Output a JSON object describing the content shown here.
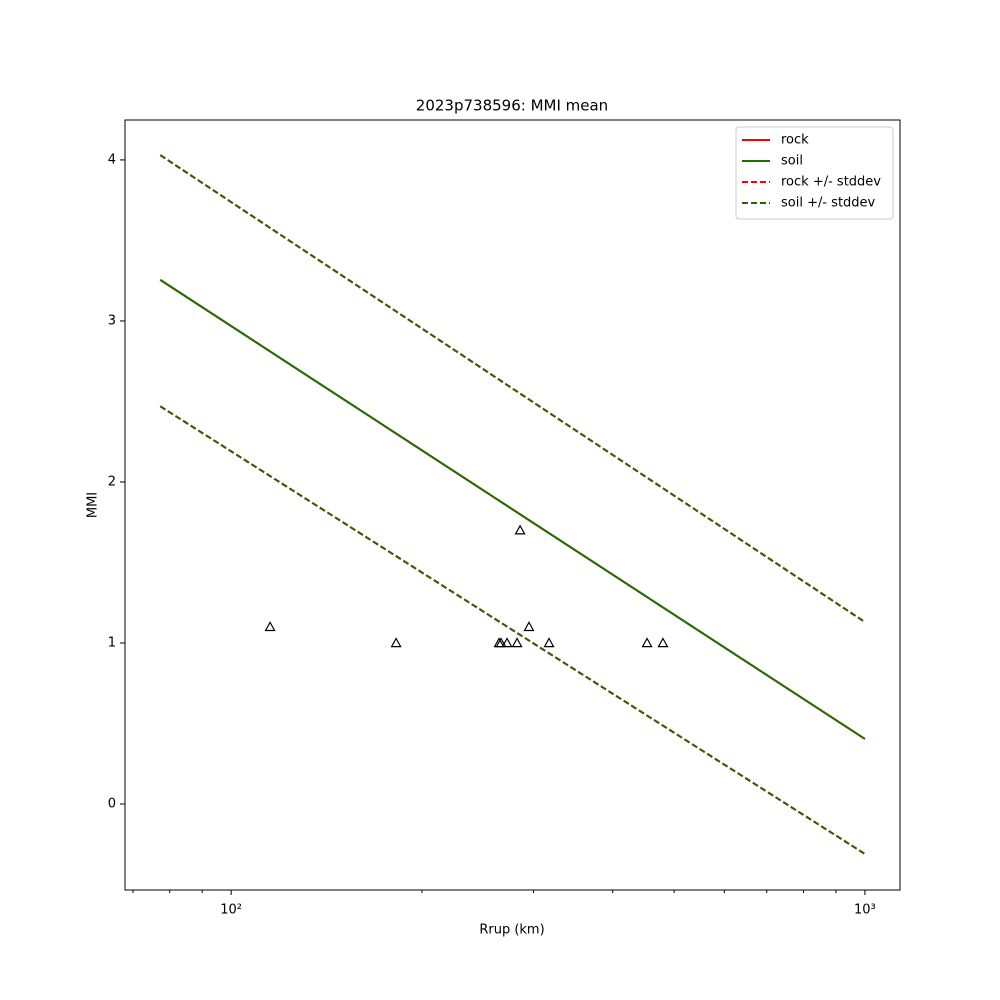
{
  "chart_data": {
    "type": "line",
    "title": "2023p738596: MMI mean",
    "xlabel": "Rrup (km)",
    "ylabel": "MMI",
    "xscale": "log",
    "xlim": [
      68.0,
      1136
    ],
    "ylim": [
      -0.534,
      4.248
    ],
    "xticks": [
      {
        "value": 100,
        "label": "10²"
      },
      {
        "value": 1000,
        "label": "10³"
      }
    ],
    "xminorticks": [
      70,
      80,
      90,
      200,
      300,
      400,
      500,
      600,
      700,
      800,
      900
    ],
    "yticks": [
      0,
      1,
      2,
      3,
      4
    ],
    "legend": "upper right",
    "series": [
      {
        "name": "rock",
        "color": "#ff0000",
        "style": "solid",
        "x": [
          77.3,
          1000
        ],
        "values": [
          3.255,
          0.404
        ]
      },
      {
        "name": "soil",
        "color": "#1f7000",
        "style": "solid",
        "x": [
          77.3,
          1000
        ],
        "values": [
          3.255,
          0.404
        ]
      },
      {
        "name": "rock +/- stddev",
        "color": "#ff0000",
        "style": "dashed",
        "x": [
          77.3,
          1000
        ],
        "upper": [
          4.03,
          1.13
        ],
        "lower": [
          2.47,
          -0.31
        ]
      },
      {
        "name": "soil +/- stddev",
        "color": "#2a6400",
        "style": "dashed",
        "x": [
          77.3,
          1000
        ],
        "upper": [
          4.03,
          1.13
        ],
        "lower": [
          2.47,
          -0.31
        ]
      }
    ],
    "observations": {
      "marker": "triangle",
      "color": "#000000",
      "x": [
        115.2,
        182.1,
        264.7,
        266.6,
        272.5,
        282.6,
        285.7,
        295.1,
        317.4,
        453.2,
        480.1
      ],
      "values": [
        1.1,
        1.0,
        1.0,
        1.0,
        1.0,
        1.0,
        1.7,
        1.1,
        1.0,
        1.0,
        1.0
      ]
    }
  }
}
